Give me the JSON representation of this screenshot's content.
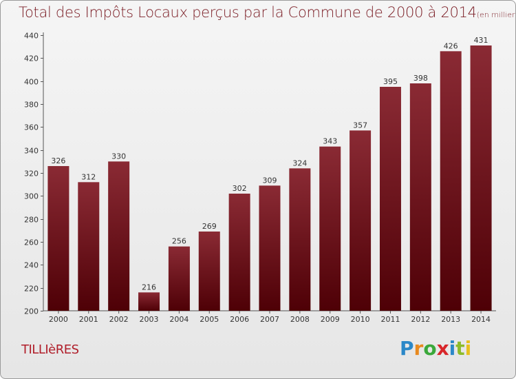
{
  "header": {
    "title": "Total des Impôts Locaux perçus par la Commune de 2000 à 2014",
    "unit": "(en milliers d'€)"
  },
  "commune": "TILLIèRES",
  "logo": {
    "letters": [
      "P",
      "r",
      "o",
      "x",
      "i",
      "t",
      "i"
    ],
    "colors": [
      "#2b88c8",
      "#e88a1f",
      "#3aa83a",
      "#d8262a",
      "#2b88c8",
      "#8dbb2a",
      "#e8c01f"
    ]
  },
  "colors": {
    "bar_top": "#8a2a34",
    "bar_bottom": "#4e0006",
    "title": "#7a1c24"
  },
  "chart_data": {
    "type": "bar",
    "title": "Total des Impôts Locaux perçus par la Commune de 2000 à 2014",
    "xlabel": "",
    "ylabel": "",
    "categories": [
      "2000",
      "2001",
      "2002",
      "2003",
      "2004",
      "2005",
      "2006",
      "2007",
      "2008",
      "2009",
      "2010",
      "2011",
      "2012",
      "2013",
      "2014"
    ],
    "values": [
      326,
      312,
      330,
      216,
      256,
      269,
      302,
      309,
      324,
      343,
      357,
      395,
      398,
      426,
      431
    ],
    "ylim": [
      200,
      440
    ],
    "yticks": [
      200,
      220,
      240,
      260,
      280,
      300,
      320,
      340,
      360,
      380,
      400,
      420,
      440
    ],
    "grid": false
  }
}
